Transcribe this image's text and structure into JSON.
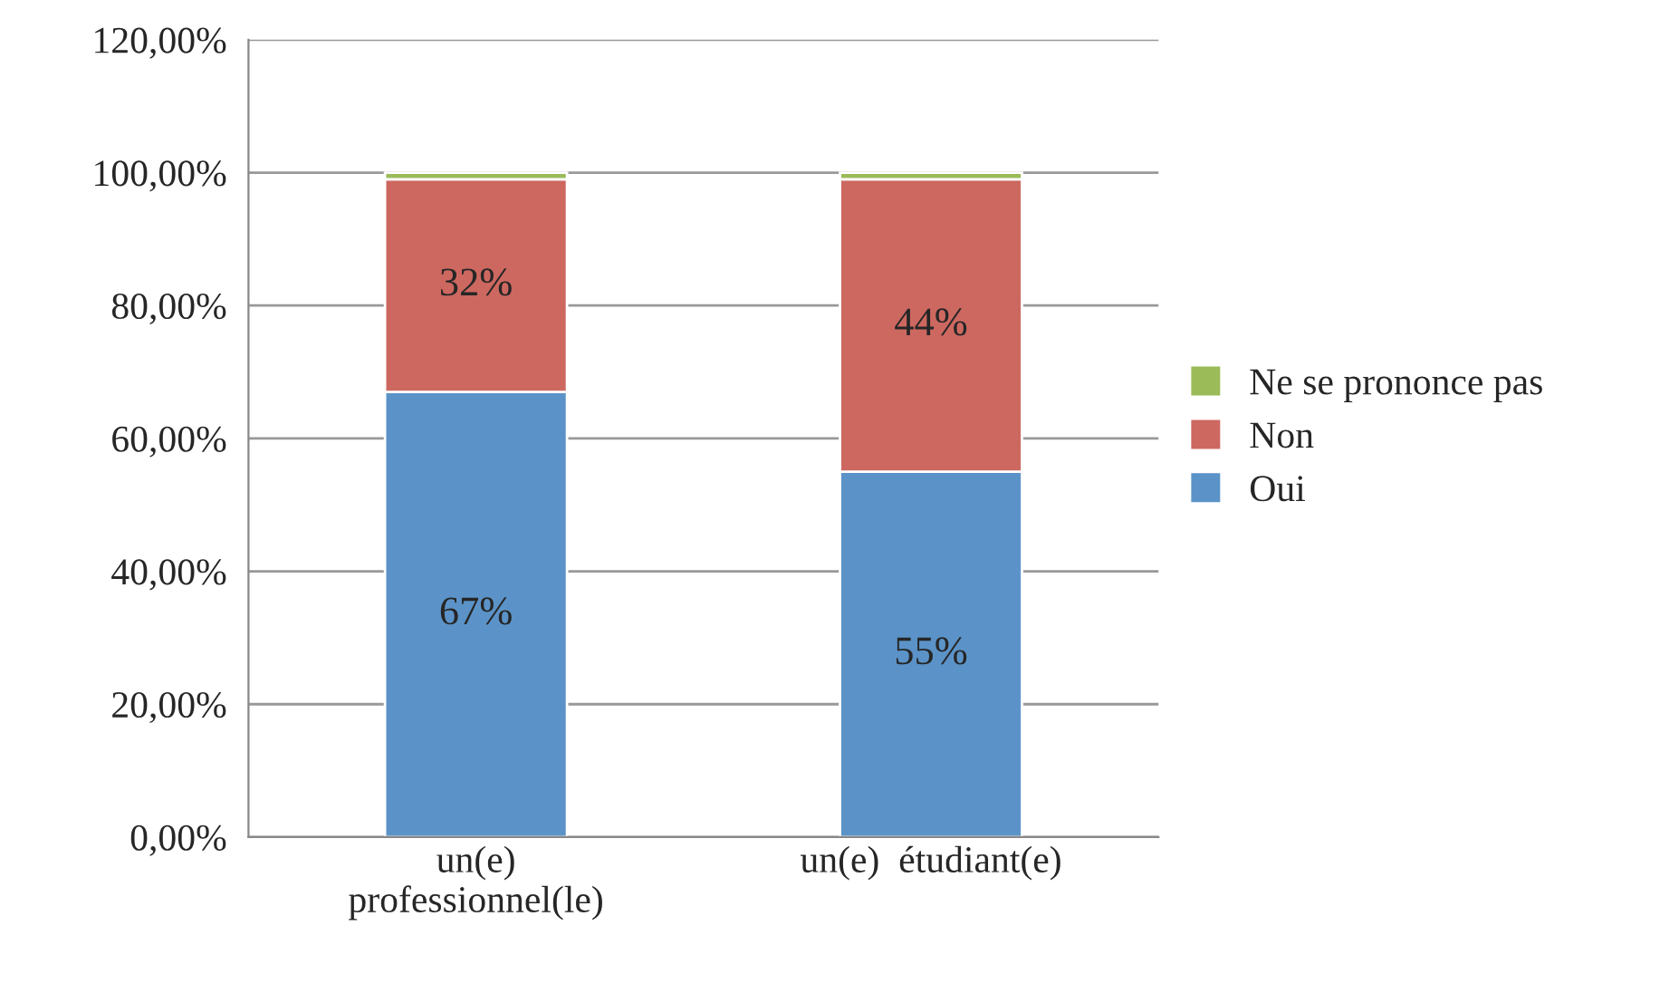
{
  "chart_data": {
    "type": "bar",
    "stacked": true,
    "categories": [
      "un(e)\nprofessionnel(le)",
      "un(e)  étudiant(e)"
    ],
    "series": [
      {
        "name": "Oui",
        "color": "#5b93c8",
        "values": [
          67,
          55
        ],
        "value_labels": [
          "67%",
          "55%"
        ]
      },
      {
        "name": "Non",
        "color": "#cd6860",
        "values": [
          32,
          44
        ],
        "value_labels": [
          "32%",
          "44%"
        ]
      },
      {
        "name": "Ne se prononce pas",
        "color": "#9bbb59",
        "values": [
          1,
          1
        ]
      }
    ],
    "ylim": [
      0,
      120
    ],
    "yticks": [
      {
        "value": 0,
        "label": "0,00%"
      },
      {
        "value": 20,
        "label": "20,00%"
      },
      {
        "value": 40,
        "label": "40,00%"
      },
      {
        "value": 60,
        "label": "60,00%"
      },
      {
        "value": 80,
        "label": "80,00%"
      },
      {
        "value": 100,
        "label": "100,00%"
      },
      {
        "value": 120,
        "label": "120,00%"
      }
    ],
    "grid": "y",
    "legend": "right"
  }
}
